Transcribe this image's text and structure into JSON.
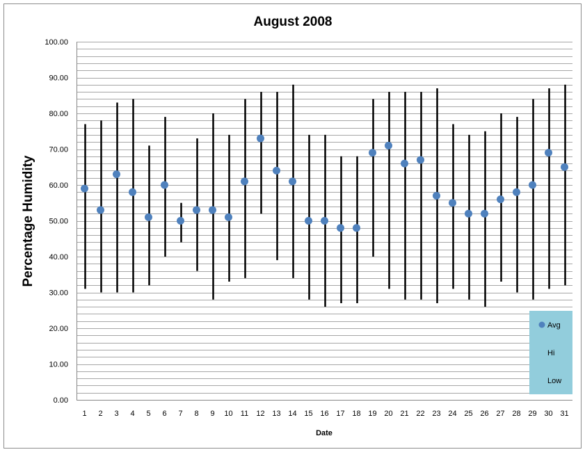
{
  "chart_data": {
    "type": "scatter",
    "title": "August 2008",
    "xlabel": "Date",
    "ylabel": "Percentage Humidity",
    "ylim": [
      0,
      100
    ],
    "y_major_step": 10,
    "y_minor_step": 2,
    "grid": true,
    "legend_position": "bottom-right",
    "categories": [
      "1",
      "2",
      "3",
      "4",
      "5",
      "6",
      "7",
      "8",
      "9",
      "10",
      "11",
      "12",
      "13",
      "14",
      "15",
      "16",
      "17",
      "18",
      "19",
      "20",
      "21",
      "22",
      "23",
      "24",
      "25",
      "26",
      "27",
      "28",
      "29",
      "30",
      "31"
    ],
    "y_ticks": [
      "0.00",
      "10.00",
      "20.00",
      "30.00",
      "40.00",
      "50.00",
      "60.00",
      "70.00",
      "80.00",
      "90.00",
      "100.00"
    ],
    "series": [
      {
        "name": "Avg",
        "values": [
          59,
          53,
          63,
          58,
          51,
          60,
          50,
          53,
          53,
          51,
          61,
          73,
          64,
          61,
          50,
          50,
          48,
          48,
          69,
          71,
          66,
          67,
          57,
          55,
          52,
          52,
          56,
          58,
          60,
          69,
          65
        ]
      },
      {
        "name": "Hi",
        "values": [
          77,
          78,
          83,
          84,
          71,
          79,
          55,
          73,
          80,
          74,
          84,
          86,
          86,
          88,
          74,
          74,
          68,
          68,
          84,
          86,
          86,
          86,
          87,
          77,
          74,
          75,
          80,
          79,
          84,
          87,
          88
        ]
      },
      {
        "name": "Low",
        "values": [
          31,
          30,
          30,
          30,
          32,
          40,
          44,
          36,
          28,
          33,
          34,
          52,
          39,
          34,
          28,
          26,
          27,
          27,
          40,
          31,
          28,
          28,
          27,
          31,
          28,
          26,
          33,
          30,
          28,
          31,
          32
        ]
      }
    ],
    "colors": {
      "avg": "#4f81bd",
      "range": "#000000",
      "legend_bg": "#92cddc",
      "grid": "#a6a6a6"
    }
  }
}
